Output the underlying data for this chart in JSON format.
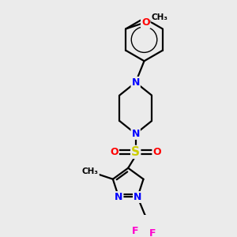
{
  "background_color": "#ebebeb",
  "bond_color": "#000000",
  "bond_width": 1.6,
  "atom_colors": {
    "N": "#0000ff",
    "O": "#ff0000",
    "S": "#cccc00",
    "F": "#ff00cc",
    "C": "#000000"
  },
  "fig_width": 3.0,
  "fig_height": 3.0,
  "dpi": 100
}
